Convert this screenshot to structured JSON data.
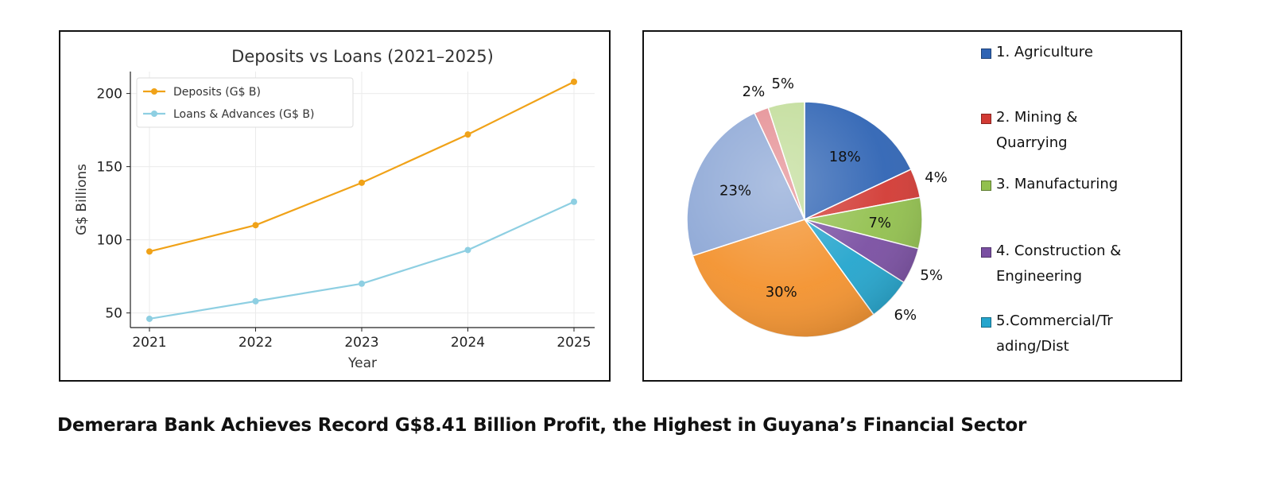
{
  "headline": "Demerara Bank Achieves Record G$8.41 Billion Profit, the Highest in Guyana’s Financial Sector",
  "chart_data": [
    {
      "type": "line",
      "title": "Deposits vs Loans (2021–2025)",
      "xlabel": "Year",
      "ylabel": "G$ Billions",
      "x": [
        "2021",
        "2022",
        "2023",
        "2024",
        "2025"
      ],
      "yticks": [
        "50",
        "100",
        "150",
        "200"
      ],
      "ylim": [
        40,
        215
      ],
      "grid": true,
      "legend_position": "top-left",
      "series": [
        {
          "name": "Deposits (G$ B)",
          "color": "#f0a218",
          "values": [
            92,
            110,
            139,
            172,
            208
          ]
        },
        {
          "name": "Loans & Advances (G$ B)",
          "color": "#8ecfe2",
          "values": [
            46,
            58,
            70,
            93,
            126
          ]
        }
      ]
    },
    {
      "type": "pie",
      "legend_position": "right",
      "slices": [
        {
          "legend": "1. Agriculture",
          "legend_lines": [
            "1. Agriculture"
          ],
          "label": "18%",
          "value": 18,
          "color": "#2f64b4"
        },
        {
          "legend": "2. Mining & Quarrying",
          "legend_lines": [
            "2. Mining &",
            "Quarrying"
          ],
          "label": "4%",
          "value": 4,
          "color": "#d23a34"
        },
        {
          "legend": "3. Manufacturing",
          "legend_lines": [
            "3. Manufacturing"
          ],
          "label": "7%",
          "value": 7,
          "color": "#92c04e"
        },
        {
          "legend": "4. Construction & Engineering",
          "legend_lines": [
            "4. Construction &",
            "Engineering"
          ],
          "label": "5%",
          "value": 5,
          "color": "#7a4fa2"
        },
        {
          "legend": "5.Commercial/Trading/Dist",
          "legend_lines": [
            "5.Commercial/Tr",
            "ading/Dist"
          ],
          "label": "6%",
          "value": 6,
          "color": "#24a5cd"
        },
        {
          "legend": "",
          "legend_lines": [],
          "label": "30%",
          "value": 30,
          "color": "#f3922e"
        },
        {
          "legend": "",
          "legend_lines": [],
          "label": "23%",
          "value": 23,
          "color": "#8ea8d6"
        },
        {
          "legend": "",
          "legend_lines": [],
          "label": "2%",
          "value": 2,
          "color": "#e58f94"
        },
        {
          "legend": "",
          "legend_lines": [],
          "label": "5%",
          "value": 5,
          "color": "#c2dd9a"
        }
      ]
    }
  ]
}
